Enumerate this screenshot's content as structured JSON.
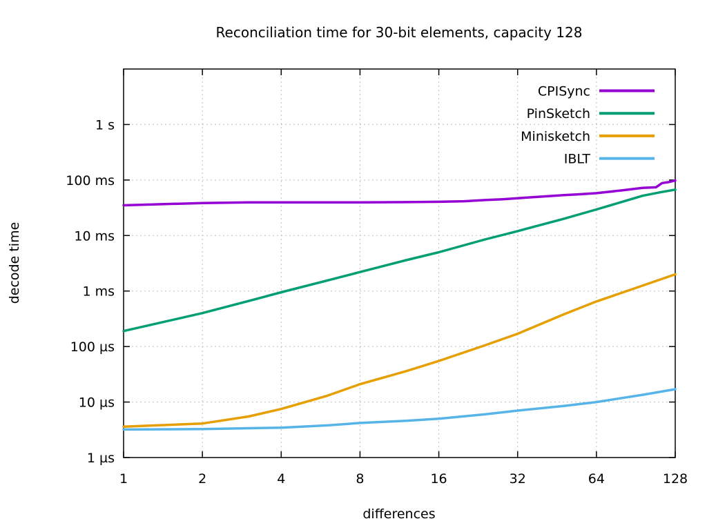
{
  "page": {
    "background_color": "#ffffff",
    "text_color": "#000000",
    "axis_color": "#000000",
    "grid_color": "#bdbdbd"
  },
  "chart_data": {
    "type": "line",
    "title": "Reconciliation time for 30-bit elements, capacity 128",
    "xlabel": "differences",
    "ylabel": "decode time",
    "x_scale": "log2",
    "y_scale": "log10",
    "x_range": [
      1,
      128
    ],
    "y_range_us": [
      1,
      10000000
    ],
    "grid": true,
    "legend_position": "top-right-inside",
    "x_ticks": [
      {
        "value": 1,
        "label": "1"
      },
      {
        "value": 2,
        "label": "2"
      },
      {
        "value": 4,
        "label": "4"
      },
      {
        "value": 8,
        "label": "8"
      },
      {
        "value": 16,
        "label": "16"
      },
      {
        "value": 32,
        "label": "32"
      },
      {
        "value": 64,
        "label": "64"
      },
      {
        "value": 128,
        "label": "128"
      }
    ],
    "y_ticks": [
      {
        "value_us": 1,
        "label": "1 µs"
      },
      {
        "value_us": 10,
        "label": "10 µs"
      },
      {
        "value_us": 100,
        "label": "100 µs"
      },
      {
        "value_us": 1000,
        "label": "1 ms"
      },
      {
        "value_us": 10000,
        "label": "10 ms"
      },
      {
        "value_us": 100000,
        "label": "100 ms"
      },
      {
        "value_us": 1000000,
        "label": "1 s"
      }
    ],
    "series": [
      {
        "name": "CPISync",
        "color": "#9400d3",
        "points_us": [
          [
            1,
            35000
          ],
          [
            2,
            38500
          ],
          [
            3,
            39500
          ],
          [
            4,
            39500
          ],
          [
            6,
            39500
          ],
          [
            8,
            39500
          ],
          [
            12,
            40000
          ],
          [
            16,
            40500
          ],
          [
            20,
            41500
          ],
          [
            24,
            43500
          ],
          [
            28,
            45000
          ],
          [
            32,
            47000
          ],
          [
            40,
            50500
          ],
          [
            48,
            53500
          ],
          [
            56,
            55500
          ],
          [
            64,
            58000
          ],
          [
            80,
            65000
          ],
          [
            96,
            72000
          ],
          [
            108,
            74000
          ],
          [
            114,
            88000
          ],
          [
            121,
            92000
          ],
          [
            128,
            98000
          ]
        ]
      },
      {
        "name": "PinSketch",
        "color": "#009e73",
        "points_us": [
          [
            1,
            190
          ],
          [
            2,
            400
          ],
          [
            3,
            660
          ],
          [
            4,
            950
          ],
          [
            6,
            1550
          ],
          [
            8,
            2200
          ],
          [
            12,
            3600
          ],
          [
            16,
            5000
          ],
          [
            24,
            8500
          ],
          [
            32,
            12000
          ],
          [
            48,
            20000
          ],
          [
            64,
            29500
          ],
          [
            96,
            52000
          ],
          [
            112,
            60000
          ],
          [
            128,
            67000
          ]
        ]
      },
      {
        "name": "Minisketch",
        "color": "#e69f00",
        "points_us": [
          [
            1,
            3.6
          ],
          [
            2,
            4.1
          ],
          [
            3,
            5.5
          ],
          [
            4,
            7.5
          ],
          [
            6,
            13
          ],
          [
            8,
            21
          ],
          [
            12,
            36
          ],
          [
            16,
            55
          ],
          [
            24,
            105
          ],
          [
            32,
            170
          ],
          [
            48,
            380
          ],
          [
            64,
            650
          ],
          [
            96,
            1250
          ],
          [
            128,
            2000
          ]
        ]
      },
      {
        "name": "IBLT",
        "color": "#56b4e9",
        "points_us": [
          [
            1,
            3.2
          ],
          [
            2,
            3.25
          ],
          [
            4,
            3.45
          ],
          [
            6,
            3.8
          ],
          [
            8,
            4.2
          ],
          [
            12,
            4.6
          ],
          [
            16,
            5.0
          ],
          [
            24,
            6.0
          ],
          [
            32,
            7.0
          ],
          [
            48,
            8.5
          ],
          [
            64,
            10
          ],
          [
            96,
            13.5
          ],
          [
            128,
            17
          ]
        ]
      }
    ]
  }
}
